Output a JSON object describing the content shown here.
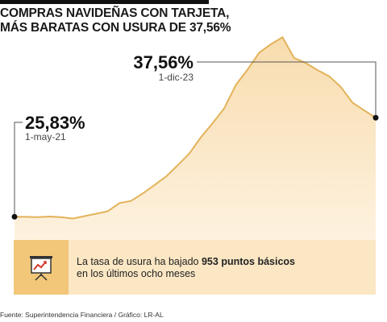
{
  "header": {
    "title_line1": "COMPRAS NAVIDEÑAS CON TARJETA,",
    "title_line2": "MÁS BARATAS CON USURA DE 37,56%"
  },
  "annotations": {
    "start": {
      "value": "25,83%",
      "date": "1-may-21"
    },
    "end": {
      "value": "37,56%",
      "date": "1-dic-23"
    }
  },
  "note": {
    "part1": "La tasa de usura ha bajado ",
    "bold": "953 puntos básicos",
    "part2": "en los últimos ocho meses",
    "icon": "chart-presentation-icon"
  },
  "source": "Fuente: Superintendencia Financiera / Gráfico: LR-AL",
  "colors": {
    "line": "#e2b35a",
    "fill_top": "#f8dcae",
    "fill_bottom": "#fff8ec",
    "icon_bg": "#f2c77a",
    "note_bg": "#fbe7c4"
  },
  "chart_data": {
    "type": "area",
    "title": "COMPRAS NAVIDEÑAS CON TARJETA, MÁS BARATAS CON USURA DE 37,56%",
    "xlabel": "",
    "ylabel": "",
    "x_range": [
      "2021-05",
      "2023-12"
    ],
    "y_unit": "%",
    "grid": false,
    "series": [
      {
        "x": [
          "2021-05",
          "2021-06",
          "2021-07",
          "2021-08",
          "2021-09",
          "2021-10",
          "2021-11",
          "2021-12",
          "2022-01",
          "2022-02",
          "2022-03",
          "2022-04",
          "2022-05",
          "2022-06",
          "2022-07",
          "2022-08",
          "2022-09",
          "2022-10",
          "2022-11",
          "2022-12",
          "2023-01",
          "2023-02",
          "2023-03",
          "2023-04",
          "2023-05",
          "2023-06",
          "2023-07",
          "2023-08",
          "2023-09",
          "2023-10",
          "2023-11",
          "2023-12"
        ],
        "values": [
          25.83,
          25.82,
          25.79,
          25.86,
          25.79,
          25.62,
          25.91,
          26.19,
          26.49,
          27.45,
          27.71,
          28.58,
          29.57,
          30.6,
          31.92,
          33.32,
          35.25,
          36.92,
          38.67,
          41.46,
          43.26,
          45.27,
          46.26,
          47.09,
          44.64,
          44.04,
          43.21,
          42.48,
          41.22,
          39.36,
          38.45,
          37.56
        ]
      }
    ]
  }
}
